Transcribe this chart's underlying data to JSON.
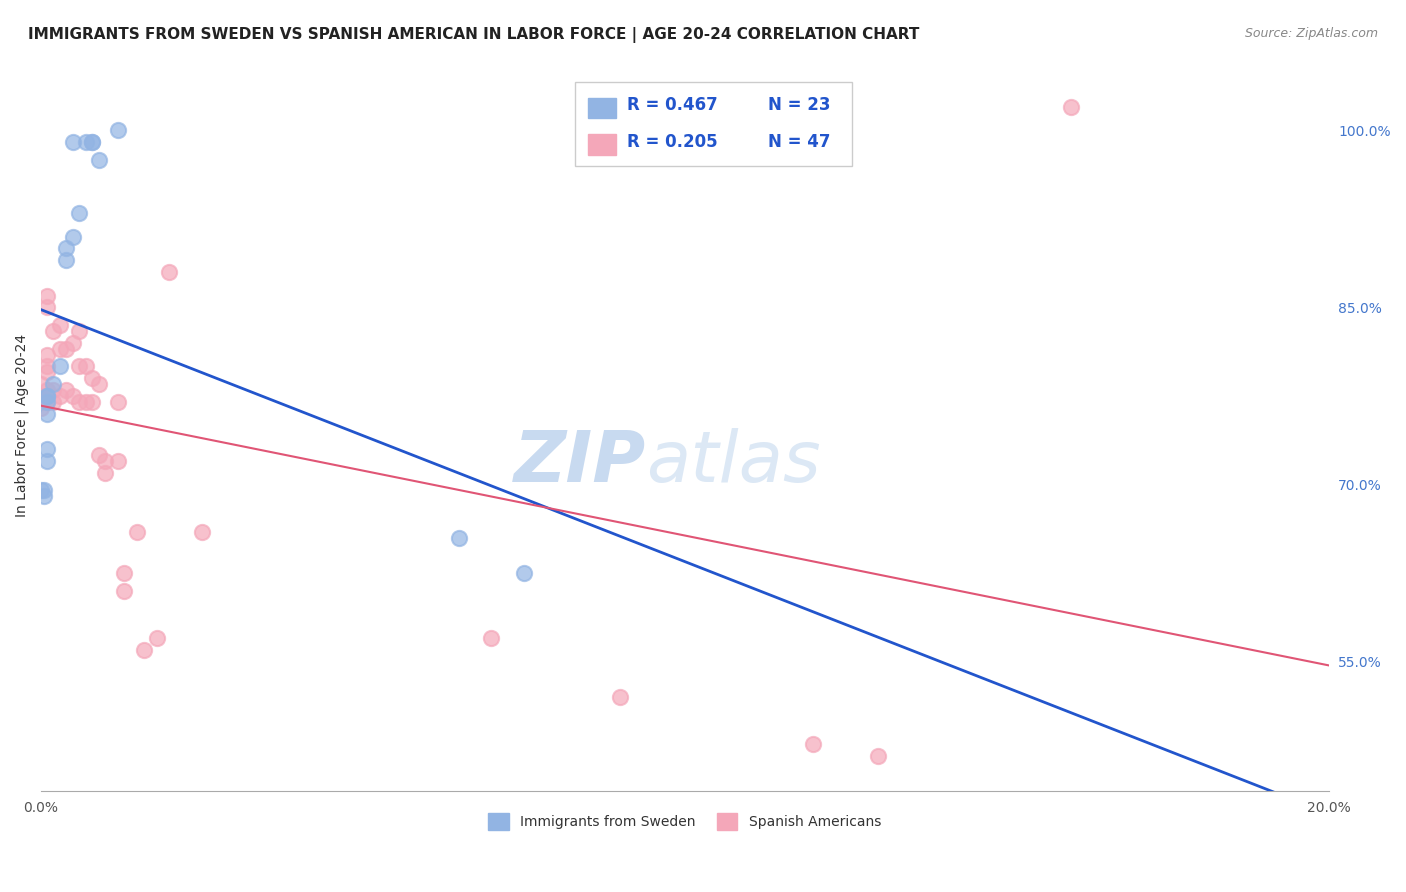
{
  "title": "IMMIGRANTS FROM SWEDEN VS SPANISH AMERICAN IN LABOR FORCE | AGE 20-24 CORRELATION CHART",
  "source": "Source: ZipAtlas.com",
  "ylabel": "In Labor Force | Age 20-24",
  "right_yticks": [
    55.0,
    70.0,
    85.0,
    100.0
  ],
  "right_ytick_labels": [
    "55.0%",
    "70.0%",
    "85.0%",
    "100.0%"
  ],
  "watermark_zip": "ZIP",
  "watermark_atlas": "atlas",
  "legend_blue_r": "R = 0.467",
  "legend_blue_n": "N = 23",
  "legend_pink_r": "R = 0.205",
  "legend_pink_n": "N = 47",
  "blue_color": "#92b4e3",
  "pink_color": "#f4a7b9",
  "blue_line_color": "#2255cc",
  "pink_line_color": "#e05575",
  "blue_scatter_x": [
    0.012,
    0.005,
    0.008,
    0.007,
    0.008,
    0.009,
    0.006,
    0.005,
    0.004,
    0.004,
    0.003,
    0.002,
    0.001,
    0.001,
    0.001,
    0.001,
    0.001,
    0.001,
    0.0005,
    0.0005,
    0.0,
    0.065,
    0.075
  ],
  "blue_scatter_y": [
    1.0,
    0.99,
    0.99,
    0.99,
    0.99,
    0.975,
    0.93,
    0.91,
    0.9,
    0.89,
    0.8,
    0.785,
    0.775,
    0.775,
    0.77,
    0.76,
    0.73,
    0.72,
    0.695,
    0.69,
    0.695,
    0.655,
    0.625
  ],
  "pink_scatter_x": [
    0.0,
    0.0,
    0.0,
    0.0,
    0.0,
    0.001,
    0.001,
    0.001,
    0.001,
    0.001,
    0.001,
    0.001,
    0.002,
    0.002,
    0.002,
    0.003,
    0.003,
    0.003,
    0.004,
    0.004,
    0.005,
    0.005,
    0.006,
    0.006,
    0.006,
    0.007,
    0.007,
    0.008,
    0.008,
    0.009,
    0.009,
    0.01,
    0.01,
    0.012,
    0.012,
    0.013,
    0.013,
    0.015,
    0.016,
    0.018,
    0.02,
    0.025,
    0.07,
    0.09,
    0.12,
    0.13,
    0.16
  ],
  "pink_scatter_y": [
    0.785,
    0.775,
    0.775,
    0.77,
    0.765,
    0.86,
    0.85,
    0.81,
    0.8,
    0.795,
    0.78,
    0.77,
    0.83,
    0.78,
    0.77,
    0.835,
    0.815,
    0.775,
    0.815,
    0.78,
    0.82,
    0.775,
    0.83,
    0.8,
    0.77,
    0.8,
    0.77,
    0.79,
    0.77,
    0.785,
    0.725,
    0.72,
    0.71,
    0.77,
    0.72,
    0.625,
    0.61,
    0.66,
    0.56,
    0.57,
    0.88,
    0.66,
    0.57,
    0.52,
    0.48,
    0.47,
    1.02
  ],
  "xmin": 0.0,
  "xmax": 0.2,
  "ymin": 0.44,
  "ymax": 1.06,
  "grid_color": "#dddddd",
  "background_color": "#ffffff",
  "title_fontsize": 11,
  "source_fontsize": 9,
  "legend_r_color": "#2255cc",
  "legend_n_color": "#333333"
}
